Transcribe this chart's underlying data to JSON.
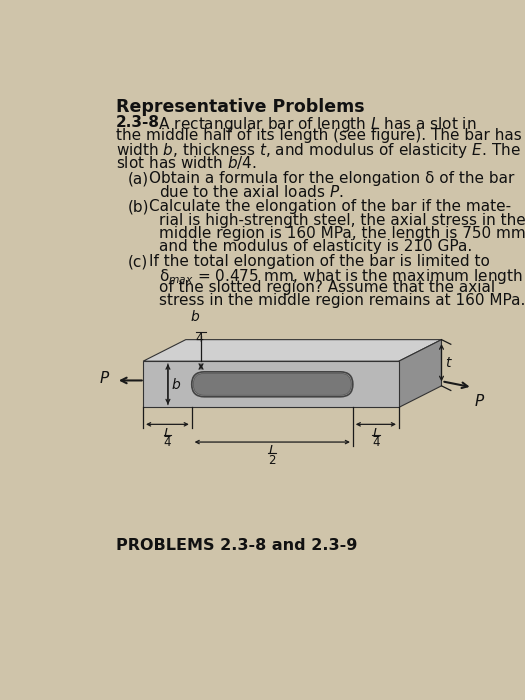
{
  "bg_color": "#cfc4aa",
  "title": "Representative Problems",
  "prob_num": "2.3-8",
  "caption": "PROBLEMS 2.3-8 and 2.3-9",
  "bar_face": "#b8b8b8",
  "bar_top": "#d0d0d0",
  "bar_right": "#909090",
  "bar_edge": "#333333",
  "slot_face": "#787878",
  "slot_rim": "#999999",
  "dim_color": "#1a1a1a",
  "text_color": "#111111"
}
